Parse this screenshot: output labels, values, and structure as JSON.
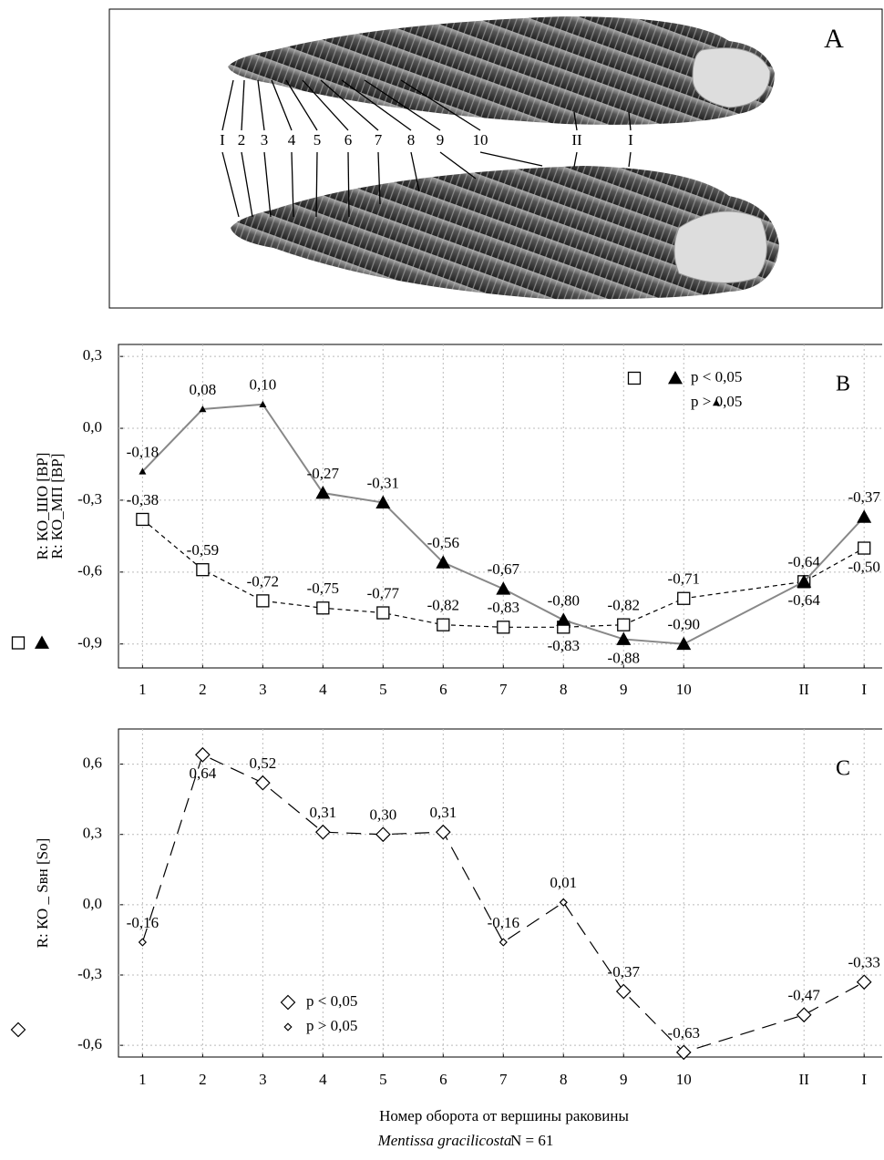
{
  "photo_panel": {
    "label": "A",
    "arrow_labels": [
      "I",
      "2",
      "3",
      "4",
      "5",
      "6",
      "7",
      "8",
      "9",
      "10",
      "II",
      "I"
    ]
  },
  "chart_data": [
    {
      "type": "line",
      "panel_label": "B",
      "x": [
        1,
        2,
        3,
        4,
        5,
        6,
        7,
        8,
        9,
        10,
        12,
        13
      ],
      "xlim": [
        0.6,
        13.3
      ],
      "xticks": [
        1,
        2,
        3,
        4,
        5,
        6,
        7,
        8,
        9,
        10,
        {
          "value": 12,
          "label": "II"
        },
        {
          "value": 13,
          "label": "I"
        }
      ],
      "ylim": [
        -1.0,
        0.35
      ],
      "yticks": [
        {
          "value": 0.3,
          "label": "0,3"
        },
        {
          "value": 0.0,
          "label": "0,0"
        },
        {
          "value": -0.3,
          "label": "-0,3"
        },
        {
          "value": -0.6,
          "label": "-0,6"
        },
        {
          "value": -0.9,
          "label": "-0,9"
        }
      ],
      "grid": true,
      "legend_entries": [
        "p < 0,05",
        "p > 0,05"
      ],
      "series": [
        {
          "name": "R: КО_ШО [BP]",
          "color": "#000000",
          "marker": "square",
          "line_style": "dashed",
          "values": [
            -0.38,
            -0.59,
            -0.72,
            -0.75,
            -0.77,
            -0.82,
            -0.83,
            -0.83,
            -0.82,
            -0.71,
            -0.64,
            -0.5
          ],
          "value_labels": [
            "-0,38",
            "-0,59",
            "-0,72",
            "-0,75",
            "-0,77",
            "-0,82",
            "-0,83",
            "-0,83",
            "-0,82",
            "-0,71",
            "-0,64",
            "-0,50"
          ],
          "significant": [
            true,
            true,
            true,
            true,
            true,
            true,
            true,
            true,
            true,
            true,
            true,
            true
          ]
        },
        {
          "name": "R: КО_МП [BP]",
          "color": "#888888",
          "marker": "triangle",
          "line_style": "solid",
          "values": [
            -0.18,
            0.08,
            0.1,
            -0.27,
            -0.31,
            -0.56,
            -0.67,
            -0.8,
            -0.88,
            -0.9,
            -0.64,
            -0.37
          ],
          "value_labels": [
            "-0,18",
            "0,08",
            "0,10",
            "-0,27",
            "-0,31",
            "-0,56",
            "-0,67",
            "-0,80",
            "-0,88",
            "-0,90",
            "-0,64",
            "-0,37"
          ],
          "significant": [
            false,
            false,
            false,
            true,
            true,
            true,
            true,
            true,
            true,
            true,
            true,
            true
          ]
        }
      ]
    },
    {
      "type": "line",
      "panel_label": "C",
      "x": [
        1,
        2,
        3,
        4,
        5,
        6,
        7,
        8,
        9,
        10,
        12,
        13
      ],
      "xlim": [
        0.6,
        13.3
      ],
      "xticks": [
        1,
        2,
        3,
        4,
        5,
        6,
        7,
        8,
        9,
        10,
        {
          "value": 12,
          "label": "II"
        },
        {
          "value": 13,
          "label": "I"
        }
      ],
      "ylim": [
        -0.65,
        0.75
      ],
      "yticks": [
        {
          "value": 0.6,
          "label": "0,6"
        },
        {
          "value": 0.3,
          "label": "0,3"
        },
        {
          "value": 0.0,
          "label": "0,0"
        },
        {
          "value": -0.3,
          "label": "-0,3"
        },
        {
          "value": -0.6,
          "label": "-0,6"
        }
      ],
      "grid": true,
      "legend_entries": [
        "p < 0,05",
        "p > 0,05"
      ],
      "series": [
        {
          "name": "R: КО _ Sвн [So]",
          "color": "#000000",
          "marker": "diamond",
          "line_style": "longdash",
          "values": [
            -0.16,
            0.64,
            0.52,
            0.31,
            0.3,
            0.31,
            -0.16,
            0.01,
            -0.37,
            -0.63,
            -0.47,
            -0.33
          ],
          "value_labels": [
            "-0,16",
            "0,64",
            "0,52",
            "0,31",
            "0,30",
            "0,31",
            "-0,16",
            "0,01",
            "-0,37",
            "-0,63",
            "-0,47",
            "-0,33"
          ],
          "significant": [
            false,
            true,
            true,
            true,
            true,
            true,
            false,
            false,
            true,
            true,
            true,
            true
          ]
        }
      ]
    }
  ],
  "x_axis_title": "Номер оборота от вершины раковины",
  "species": "Mentissa gracilicosta",
  "sample_size": "N = 61"
}
